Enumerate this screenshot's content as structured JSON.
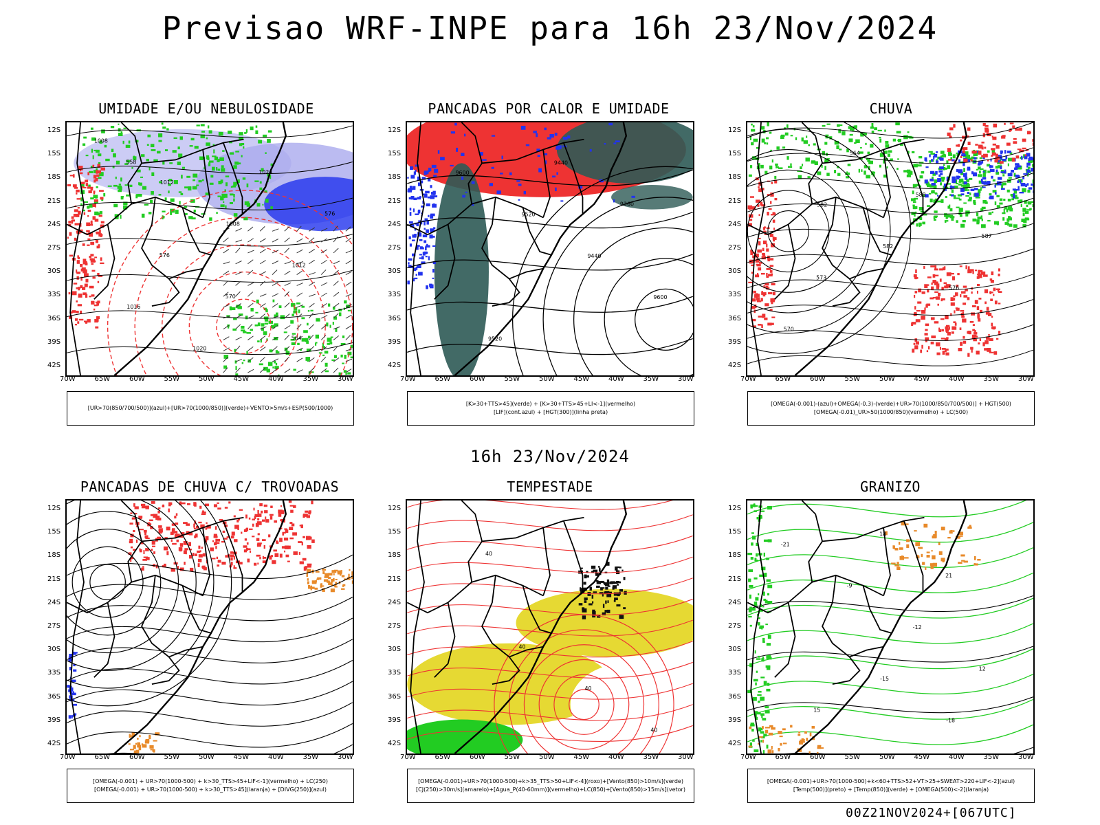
{
  "header": {
    "title": "Previsao WRF-INPE  para 16h 23/Nov/2024"
  },
  "mid_title": "16h 23/Nov/2024",
  "footer": "00Z21NOV2024+[067UTC]",
  "axes": {
    "lat_labels": [
      "12S",
      "15S",
      "18S",
      "21S",
      "24S",
      "27S",
      "30S",
      "33S",
      "36S",
      "39S",
      "42S"
    ],
    "lon_labels": [
      "70W",
      "65W",
      "60W",
      "55W",
      "50W",
      "45W",
      "40W",
      "35W",
      "30W"
    ]
  },
  "panels": [
    {
      "title": "UMIDADE E/OU NEBULOSIDADE",
      "legend": [
        "[UR>70(850/700/500)](azul)+[UR>70(1000/850)](verde)+VENTO>5m/s+ESP(500/1000)"
      ],
      "isolines": [
        "1008",
        "1012",
        "1008",
        "1012",
        "1016",
        "1020",
        "1024",
        "576",
        "576",
        "570",
        "564",
        "558"
      ]
    },
    {
      "title": "PANCADAS POR CALOR E UMIDADE",
      "legend": [
        "[K>30+TTS>45](verde) + [K>30+TTS>45+LI<-1](vermelho)",
        "[LIF](cont.azul) + [HGT(300)](linha preta)"
      ],
      "isolines": [
        "9600",
        "9520",
        "9440",
        "9600",
        "9520",
        "9440",
        "9360"
      ]
    },
    {
      "title": "CHUVA",
      "legend": [
        "[OMEGA(-0.001)-(azul)+OMEGA(-0.3)-(verde)+UR>70(1000/850/700/500)] + HGT(500)",
        "[OMEGA(-0.01)_UR>50(1000/850)(vermelho) + LC(500)"
      ],
      "isolines": [
        "582",
        "582",
        "576",
        "570",
        "564",
        "588",
        "587",
        "573"
      ]
    },
    {
      "title": "PANCADAS DE CHUVA C/ TROVOADAS",
      "legend": [
        "[OMEGA(-0.001) + UR>70(1000-500) + k>30_TTS>45+LIF<-1](vermelho) + LC(250)",
        "[OMEGA(-0.001) + UR>70(1000-500) + k>30_TTS>45](laranja) + [DIVG(250)](azul)"
      ],
      "isolines": []
    },
    {
      "title": "TEMPESTADE",
      "legend": [
        "[OMEGA(-0.001)+UR>70(1000-500)+k>35_TTS>50+LIF<-4](roxo)+[Vento(850)>10m/s](verde)",
        "[CJ(250)>30m/s](amarelo)+[Agua_P(40-60mm)](vermelho)+LC(850)+[Vento(850)>15m/s](vetor)"
      ],
      "isolines": [
        "40",
        "40",
        "40",
        "40"
      ]
    },
    {
      "title": "GRANIZO",
      "legend": [
        "[OMEGA(-0.001)+UR>70(1000-500)+k<60+TTS>52+VT>25+SWEAT>220+LIF<-2](azul)",
        "[Temp(500)](preto) + [Temp(850)](verde) + [OMEGA(500)<-2](laranja)"
      ],
      "isolines": [
        "-15",
        "-18",
        "-21",
        "-9",
        "-12",
        "12",
        "15",
        "18",
        "21"
      ]
    }
  ],
  "colors": {
    "red": "#ee3333",
    "green": "#22cc22",
    "blue": "#2233ee",
    "lavender": "#aaaaee",
    "dark_green": "#2d5a55",
    "yellow": "#e6d933",
    "orange": "#e88a2a"
  }
}
